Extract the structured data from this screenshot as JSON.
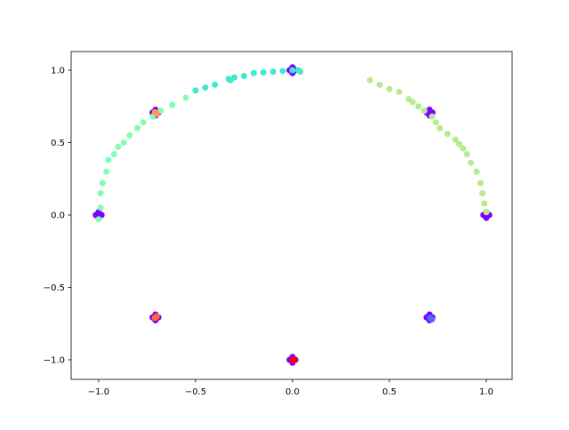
{
  "chart_data": {
    "type": "scatter",
    "xlim": [
      -1.142,
      1.133
    ],
    "ylim": [
      -1.135,
      1.129
    ],
    "xticks": [
      {
        "value": -1,
        "label": "−1.0"
      },
      {
        "value": -0.5,
        "label": "−0.5"
      },
      {
        "value": 0,
        "label": "0.0"
      },
      0.5,
      {
        "value": 1,
        "label": "1.0"
      }
    ],
    "yticks": [
      {
        "value": -1,
        "label": "−1.0"
      },
      {
        "value": -0.5,
        "label": "−0.5"
      },
      {
        "value": 0,
        "label": "0.0"
      },
      0.5,
      {
        "value": 1,
        "label": "1.0"
      }
    ],
    "grid": false,
    "series": [
      {
        "color": "#8000ff",
        "x": [
          -0.985,
          -1.015,
          -1,
          -1,
          -0.692,
          -0.722,
          -0.707,
          -0.707,
          0.015,
          -0.015,
          0,
          0,
          0.722,
          0.692,
          0.707,
          0.707,
          1.015,
          0.985,
          1,
          1,
          0.722,
          0.692,
          0.707,
          0.707,
          0.015,
          -0.015,
          0,
          0,
          -0.692,
          -0.722,
          -0.707,
          -0.707
        ],
        "y": [
          0,
          0,
          0.02,
          -0.02,
          0.707,
          0.707,
          0.727,
          0.687,
          1,
          1,
          1.02,
          0.98,
          0.707,
          0.707,
          0.727,
          0.687,
          0,
          0,
          0.02,
          -0.02,
          -0.707,
          -0.707,
          -0.687,
          -0.727,
          -1,
          -1,
          -0.98,
          -1.02,
          -0.707,
          -0.707,
          -0.687,
          -0.727
        ]
      },
      {
        "color": "#80ffb4",
        "x": [
          -1.0,
          -0.99,
          -0.99,
          -0.98,
          -0.96,
          -0.95,
          -0.92,
          -0.9,
          -0.87,
          -0.84,
          -0.8,
          -0.77,
          -0.72,
          -0.68,
          -0.62,
          -0.55
        ],
        "y": [
          -0.03,
          0.05,
          0.15,
          0.22,
          0.3,
          0.38,
          0.42,
          0.47,
          0.5,
          0.55,
          0.6,
          0.64,
          0.68,
          0.72,
          0.76,
          0.81
        ]
      },
      {
        "color": "#40e8d0",
        "x": [
          -0.5,
          -0.45,
          -0.4,
          -0.33,
          -0.3,
          -0.25,
          -0.2,
          -0.15,
          -0.1,
          -0.05,
          0,
          0.03,
          0.04,
          -0.32
        ],
        "y": [
          0.86,
          0.88,
          0.9,
          0.94,
          0.95,
          0.96,
          0.98,
          0.985,
          0.99,
          0.995,
          1,
          1.0,
          0.99,
          0.93
        ]
      },
      {
        "color": "#b4eb8e",
        "x": [
          0.4,
          0.45,
          0.5,
          0.55,
          0.6,
          0.65,
          0.68,
          0.72,
          0.74,
          0.76,
          0.8,
          0.84,
          0.88,
          0.9,
          0.92,
          0.95,
          0.97,
          0.98,
          0.99,
          1.0,
          0.62,
          0.86
        ],
        "y": [
          0.93,
          0.9,
          0.87,
          0.85,
          0.8,
          0.75,
          0.72,
          0.68,
          0.64,
          0.6,
          0.56,
          0.52,
          0.46,
          0.42,
          0.36,
          0.3,
          0.22,
          0.15,
          0.08,
          0.02,
          0.78,
          0.49
        ]
      },
      {
        "color": "#ff9a52",
        "x": [
          -0.7,
          -0.71
        ],
        "y": [
          0.7,
          0.71
        ]
      },
      {
        "color": "#ff6a38",
        "x": [
          -0.7,
          -0.71
        ],
        "y": [
          -0.7,
          -0.71
        ]
      },
      {
        "color": "#ff0000",
        "x": [
          0,
          0.01
        ],
        "y": [
          -1,
          -1
        ]
      },
      {
        "color": "#4a70f0",
        "x": [
          0.71,
          0.72
        ],
        "y": [
          -0.71,
          -0.72
        ]
      }
    ]
  }
}
